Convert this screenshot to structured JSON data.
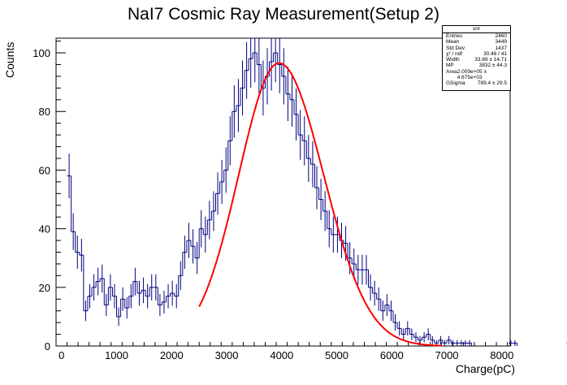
{
  "chart_data": {
    "type": "histogram",
    "title": "NaI7 Cosmic Ray Measurement(Setup 2)",
    "xlabel": "Charge(pC)",
    "ylabel": "Counts",
    "xlim": [
      -100,
      8150
    ],
    "ylim": [
      0,
      105
    ],
    "xticks": [
      0,
      1000,
      2000,
      3000,
      4000,
      5000,
      6000,
      7000,
      8000
    ],
    "yticks": [
      0,
      20,
      40,
      60,
      80,
      100
    ],
    "bin_width": 75,
    "x_start": 100,
    "counts": [
      58,
      39,
      32,
      31,
      12,
      17,
      20,
      22,
      23,
      14,
      20,
      17,
      10,
      16,
      13,
      17,
      22,
      18,
      19,
      17,
      20,
      20,
      14,
      15,
      17,
      18,
      17,
      24,
      32,
      36,
      34,
      30,
      40,
      38,
      43,
      46,
      52,
      56,
      60,
      70,
      80,
      82,
      88,
      94,
      98,
      100,
      96,
      88,
      92,
      97,
      100,
      96,
      92,
      86,
      84,
      79,
      72,
      70,
      64,
      62,
      54,
      50,
      46,
      40,
      38,
      38,
      36,
      35,
      30,
      28,
      26,
      26,
      26,
      20,
      18,
      16,
      12,
      14,
      12,
      8,
      6,
      4,
      6,
      4,
      3,
      2,
      3,
      4,
      2,
      1,
      2,
      1,
      2,
      1,
      1,
      1,
      1,
      1,
      0,
      0,
      0,
      0,
      0,
      0,
      0,
      0,
      0,
      1,
      1,
      0,
      0,
      0,
      0,
      0,
      0,
      0,
      0,
      0,
      0,
      0,
      0,
      1
    ],
    "fit": {
      "function": "landau-gauss",
      "color": "#ff0000",
      "x_range": [
        2500,
        6900
      ],
      "peak_x": 3950,
      "peak_y": 96.5,
      "sigma_left": 730,
      "sigma_right": 810
    },
    "line_color": "#000080",
    "stats_box": {
      "name": "snr",
      "rows": [
        {
          "label": "Entries",
          "value": "2460"
        },
        {
          "label": "Mean",
          "value": "3449"
        },
        {
          "label": "Std Dev",
          "value": "1437"
        },
        {
          "label": "χ² / ndf",
          "value": "30.46 / 41"
        },
        {
          "label": "Width",
          "value": "33.69 ± 14.71"
        },
        {
          "label": "MP",
          "value": "3832 ± 44.3"
        },
        {
          "label": "Area",
          "value": "2.009e+05 ± 4.675e+03"
        },
        {
          "label": "GSigma",
          "value": "789.4 ± 29.5"
        }
      ]
    }
  }
}
